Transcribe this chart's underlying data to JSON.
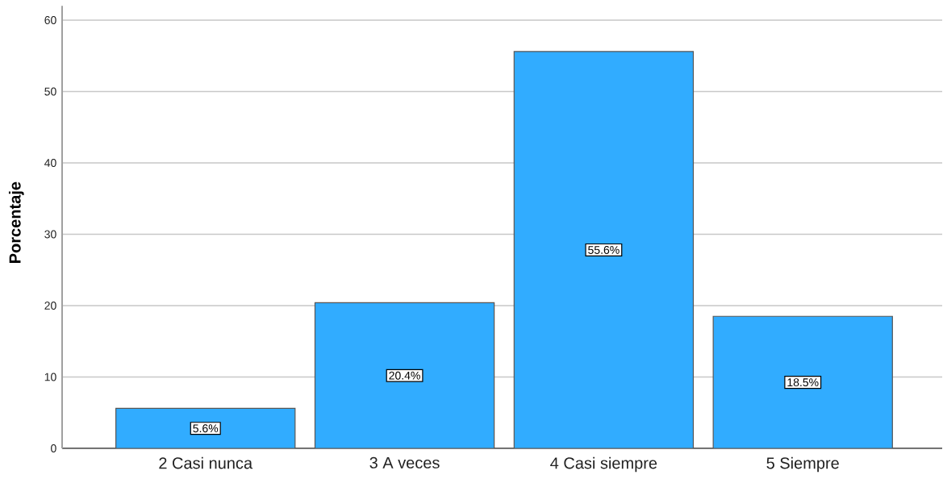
{
  "chart_data": {
    "type": "bar",
    "ylabel": "Porcentaje",
    "categories": [
      "2 Casi nunca",
      "3 A veces",
      "4 Casi siempre",
      "5 Siempre"
    ],
    "values": [
      5.6,
      20.4,
      55.6,
      18.5
    ],
    "color": "#31acff",
    "value_labels": [
      "5.6%",
      "20.4%",
      "55.6%",
      "18.5%"
    ],
    "ylim": [
      0,
      62
    ],
    "yticks": [
      0,
      10,
      20,
      30,
      40,
      50,
      60
    ],
    "grid": "y"
  }
}
